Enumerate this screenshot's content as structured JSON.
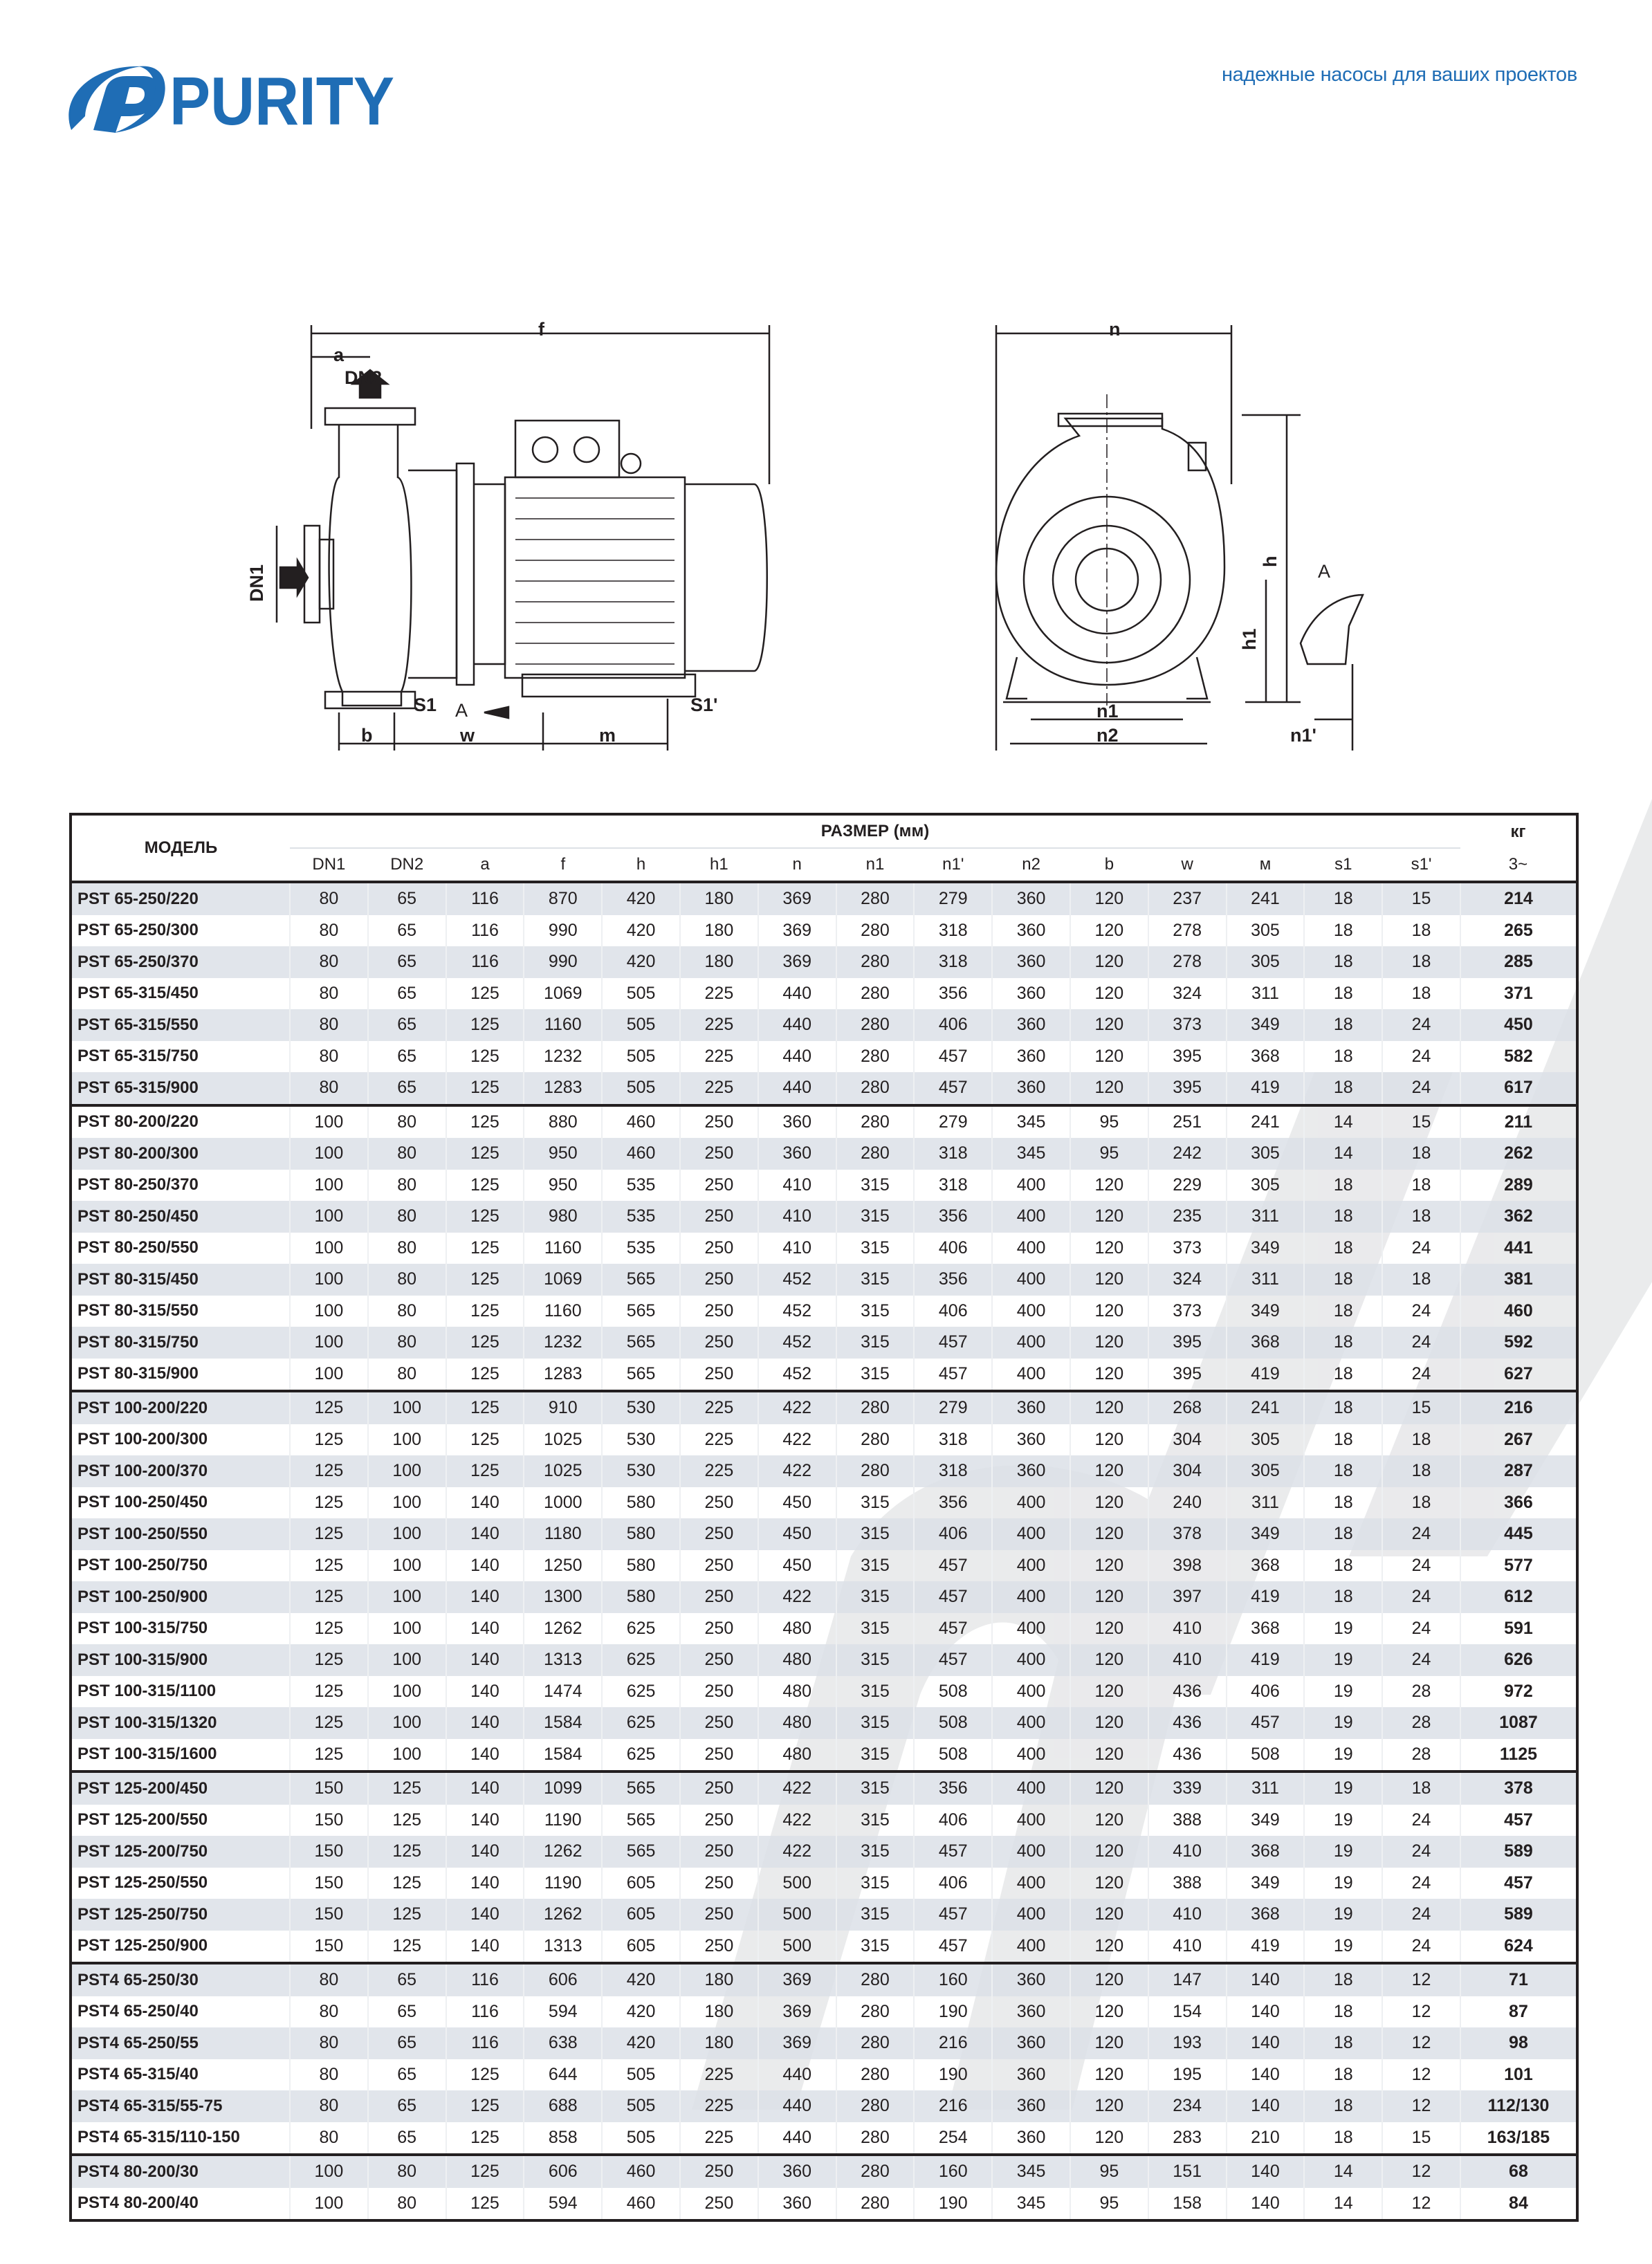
{
  "brand": {
    "logo_text": "PURITY",
    "color": "#1f6db5"
  },
  "tagline": "надежные насосы для ваших проектов",
  "drawing_labels": {
    "f": "f",
    "a": "a",
    "dn2": "DN2",
    "dn1": "DN1",
    "s1": "S1",
    "arrow_a": "A",
    "s1p": "S1'",
    "b": "b",
    "w": "w",
    "m": "m",
    "n": "n",
    "h": "h",
    "h1": "h1",
    "view_a": "A",
    "n1": "n1",
    "n2": "n2",
    "n1p": "n1'"
  },
  "table": {
    "model_header": "МОДЕЛЬ",
    "size_header": "РАЗМЕР (мм)",
    "weight_header": "кг",
    "weight_sub": "3~",
    "columns": [
      "DN1",
      "DN2",
      "a",
      "f",
      "h",
      "h1",
      "n",
      "n1",
      "n1'",
      "n2",
      "b",
      "w",
      "м",
      "s1",
      "s1'"
    ],
    "groups": [
      [
        [
          "PST 65-250/220",
          "80",
          "65",
          "116",
          "870",
          "420",
          "180",
          "369",
          "280",
          "279",
          "360",
          "120",
          "237",
          "241",
          "18",
          "15",
          "214"
        ],
        [
          "PST 65-250/300",
          "80",
          "65",
          "116",
          "990",
          "420",
          "180",
          "369",
          "280",
          "318",
          "360",
          "120",
          "278",
          "305",
          "18",
          "18",
          "265"
        ],
        [
          "PST 65-250/370",
          "80",
          "65",
          "116",
          "990",
          "420",
          "180",
          "369",
          "280",
          "318",
          "360",
          "120",
          "278",
          "305",
          "18",
          "18",
          "285"
        ],
        [
          "PST 65-315/450",
          "80",
          "65",
          "125",
          "1069",
          "505",
          "225",
          "440",
          "280",
          "356",
          "360",
          "120",
          "324",
          "311",
          "18",
          "18",
          "371"
        ],
        [
          "PST 65-315/550",
          "80",
          "65",
          "125",
          "1160",
          "505",
          "225",
          "440",
          "280",
          "406",
          "360",
          "120",
          "373",
          "349",
          "18",
          "24",
          "450"
        ],
        [
          "PST 65-315/750",
          "80",
          "65",
          "125",
          "1232",
          "505",
          "225",
          "440",
          "280",
          "457",
          "360",
          "120",
          "395",
          "368",
          "18",
          "24",
          "582"
        ],
        [
          "PST 65-315/900",
          "80",
          "65",
          "125",
          "1283",
          "505",
          "225",
          "440",
          "280",
          "457",
          "360",
          "120",
          "395",
          "419",
          "18",
          "24",
          "617"
        ]
      ],
      [
        [
          "PST 80-200/220",
          "100",
          "80",
          "125",
          "880",
          "460",
          "250",
          "360",
          "280",
          "279",
          "345",
          "95",
          "251",
          "241",
          "14",
          "15",
          "211"
        ],
        [
          "PST 80-200/300",
          "100",
          "80",
          "125",
          "950",
          "460",
          "250",
          "360",
          "280",
          "318",
          "345",
          "95",
          "242",
          "305",
          "14",
          "18",
          "262"
        ],
        [
          "PST 80-250/370",
          "100",
          "80",
          "125",
          "950",
          "535",
          "250",
          "410",
          "315",
          "318",
          "400",
          "120",
          "229",
          "305",
          "18",
          "18",
          "289"
        ],
        [
          "PST 80-250/450",
          "100",
          "80",
          "125",
          "980",
          "535",
          "250",
          "410",
          "315",
          "356",
          "400",
          "120",
          "235",
          "311",
          "18",
          "18",
          "362"
        ],
        [
          "PST 80-250/550",
          "100",
          "80",
          "125",
          "1160",
          "535",
          "250",
          "410",
          "315",
          "406",
          "400",
          "120",
          "373",
          "349",
          "18",
          "24",
          "441"
        ],
        [
          "PST 80-315/450",
          "100",
          "80",
          "125",
          "1069",
          "565",
          "250",
          "452",
          "315",
          "356",
          "400",
          "120",
          "324",
          "311",
          "18",
          "18",
          "381"
        ],
        [
          "PST 80-315/550",
          "100",
          "80",
          "125",
          "1160",
          "565",
          "250",
          "452",
          "315",
          "406",
          "400",
          "120",
          "373",
          "349",
          "18",
          "24",
          "460"
        ],
        [
          "PST 80-315/750",
          "100",
          "80",
          "125",
          "1232",
          "565",
          "250",
          "452",
          "315",
          "457",
          "400",
          "120",
          "395",
          "368",
          "18",
          "24",
          "592"
        ],
        [
          "PST 80-315/900",
          "100",
          "80",
          "125",
          "1283",
          "565",
          "250",
          "452",
          "315",
          "457",
          "400",
          "120",
          "395",
          "419",
          "18",
          "24",
          "627"
        ]
      ],
      [
        [
          "PST 100-200/220",
          "125",
          "100",
          "125",
          "910",
          "530",
          "225",
          "422",
          "280",
          "279",
          "360",
          "120",
          "268",
          "241",
          "18",
          "15",
          "216"
        ],
        [
          "PST 100-200/300",
          "125",
          "100",
          "125",
          "1025",
          "530",
          "225",
          "422",
          "280",
          "318",
          "360",
          "120",
          "304",
          "305",
          "18",
          "18",
          "267"
        ],
        [
          "PST 100-200/370",
          "125",
          "100",
          "125",
          "1025",
          "530",
          "225",
          "422",
          "280",
          "318",
          "360",
          "120",
          "304",
          "305",
          "18",
          "18",
          "287"
        ],
        [
          "PST 100-250/450",
          "125",
          "100",
          "140",
          "1000",
          "580",
          "250",
          "450",
          "315",
          "356",
          "400",
          "120",
          "240",
          "311",
          "18",
          "18",
          "366"
        ],
        [
          "PST 100-250/550",
          "125",
          "100",
          "140",
          "1180",
          "580",
          "250",
          "450",
          "315",
          "406",
          "400",
          "120",
          "378",
          "349",
          "18",
          "24",
          "445"
        ],
        [
          "PST 100-250/750",
          "125",
          "100",
          "140",
          "1250",
          "580",
          "250",
          "450",
          "315",
          "457",
          "400",
          "120",
          "398",
          "368",
          "18",
          "24",
          "577"
        ],
        [
          "PST 100-250/900",
          "125",
          "100",
          "140",
          "1300",
          "580",
          "250",
          "422",
          "315",
          "457",
          "400",
          "120",
          "397",
          "419",
          "18",
          "24",
          "612"
        ],
        [
          "PST 100-315/750",
          "125",
          "100",
          "140",
          "1262",
          "625",
          "250",
          "480",
          "315",
          "457",
          "400",
          "120",
          "410",
          "368",
          "19",
          "24",
          "591"
        ],
        [
          "PST 100-315/900",
          "125",
          "100",
          "140",
          "1313",
          "625",
          "250",
          "480",
          "315",
          "457",
          "400",
          "120",
          "410",
          "419",
          "19",
          "24",
          "626"
        ],
        [
          "PST 100-315/1100",
          "125",
          "100",
          "140",
          "1474",
          "625",
          "250",
          "480",
          "315",
          "508",
          "400",
          "120",
          "436",
          "406",
          "19",
          "28",
          "972"
        ],
        [
          "PST 100-315/1320",
          "125",
          "100",
          "140",
          "1584",
          "625",
          "250",
          "480",
          "315",
          "508",
          "400",
          "120",
          "436",
          "457",
          "19",
          "28",
          "1087"
        ],
        [
          "PST 100-315/1600",
          "125",
          "100",
          "140",
          "1584",
          "625",
          "250",
          "480",
          "315",
          "508",
          "400",
          "120",
          "436",
          "508",
          "19",
          "28",
          "1125"
        ]
      ],
      [
        [
          "PST 125-200/450",
          "150",
          "125",
          "140",
          "1099",
          "565",
          "250",
          "422",
          "315",
          "356",
          "400",
          "120",
          "339",
          "311",
          "19",
          "18",
          "378"
        ],
        [
          "PST 125-200/550",
          "150",
          "125",
          "140",
          "1190",
          "565",
          "250",
          "422",
          "315",
          "406",
          "400",
          "120",
          "388",
          "349",
          "19",
          "24",
          "457"
        ],
        [
          "PST 125-200/750",
          "150",
          "125",
          "140",
          "1262",
          "565",
          "250",
          "422",
          "315",
          "457",
          "400",
          "120",
          "410",
          "368",
          "19",
          "24",
          "589"
        ],
        [
          "PST 125-250/550",
          "150",
          "125",
          "140",
          "1190",
          "605",
          "250",
          "500",
          "315",
          "406",
          "400",
          "120",
          "388",
          "349",
          "19",
          "24",
          "457"
        ],
        [
          "PST 125-250/750",
          "150",
          "125",
          "140",
          "1262",
          "605",
          "250",
          "500",
          "315",
          "457",
          "400",
          "120",
          "410",
          "368",
          "19",
          "24",
          "589"
        ],
        [
          "PST 125-250/900",
          "150",
          "125",
          "140",
          "1313",
          "605",
          "250",
          "500",
          "315",
          "457",
          "400",
          "120",
          "410",
          "419",
          "19",
          "24",
          "624"
        ]
      ],
      [
        [
          "PST4 65-250/30",
          "80",
          "65",
          "116",
          "606",
          "420",
          "180",
          "369",
          "280",
          "160",
          "360",
          "120",
          "147",
          "140",
          "18",
          "12",
          "71"
        ],
        [
          "PST4 65-250/40",
          "80",
          "65",
          "116",
          "594",
          "420",
          "180",
          "369",
          "280",
          "190",
          "360",
          "120",
          "154",
          "140",
          "18",
          "12",
          "87"
        ],
        [
          "PST4 65-250/55",
          "80",
          "65",
          "116",
          "638",
          "420",
          "180",
          "369",
          "280",
          "216",
          "360",
          "120",
          "193",
          "140",
          "18",
          "12",
          "98"
        ],
        [
          "PST4 65-315/40",
          "80",
          "65",
          "125",
          "644",
          "505",
          "225",
          "440",
          "280",
          "190",
          "360",
          "120",
          "195",
          "140",
          "18",
          "12",
          "101"
        ],
        [
          "PST4 65-315/55-75",
          "80",
          "65",
          "125",
          "688",
          "505",
          "225",
          "440",
          "280",
          "216",
          "360",
          "120",
          "234",
          "140",
          "18",
          "12",
          "112/130"
        ],
        [
          "PST4 65-315/110-150",
          "80",
          "65",
          "125",
          "858",
          "505",
          "225",
          "440",
          "280",
          "254",
          "360",
          "120",
          "283",
          "210",
          "18",
          "15",
          "163/185"
        ]
      ],
      [
        [
          "PST4 80-200/30",
          "100",
          "80",
          "125",
          "606",
          "460",
          "250",
          "360",
          "280",
          "160",
          "345",
          "95",
          "151",
          "140",
          "14",
          "12",
          "68"
        ],
        [
          "PST4 80-200/40",
          "100",
          "80",
          "125",
          "594",
          "460",
          "250",
          "360",
          "280",
          "190",
          "345",
          "95",
          "158",
          "140",
          "14",
          "12",
          "84"
        ]
      ]
    ]
  }
}
